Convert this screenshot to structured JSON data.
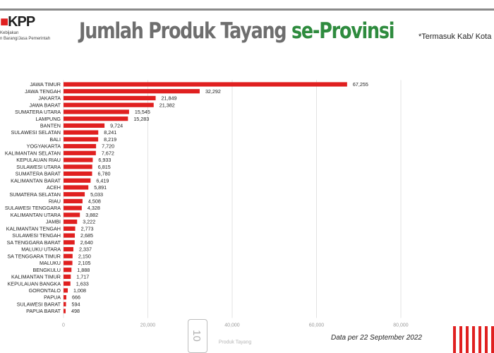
{
  "logo": {
    "mark": "KPP",
    "line1": "Kebijakan",
    "line2": "n Barang/Jasa Pemerintah"
  },
  "header": {
    "title": "Jumlah Produk Tayang",
    "title_accent": "se-Provinsi",
    "note": "*Termasuk Kab/ Kota"
  },
  "footer": {
    "page_number": "10",
    "date_note": "Data per 22 September 2022"
  },
  "colors": {
    "bar": "#e02020",
    "title_gray": "#6e6e6e",
    "title_green": "#2e8b3e"
  },
  "chart_data": {
    "type": "bar",
    "orientation": "horizontal",
    "title": "Jumlah Produk Tayang se-Provinsi",
    "xlabel": "Produk Tayang",
    "ylabel": "",
    "xlim": [
      0,
      80000
    ],
    "x_ticks": [
      "0",
      "20,000",
      "40,000",
      "60,000",
      "80,000"
    ],
    "x_tick_values": [
      0,
      20000,
      40000,
      60000,
      80000
    ],
    "grid": true,
    "categories": [
      "JAWA TIMUR",
      "JAWA TENGAH",
      "JAKARTA",
      "JAWA BARAT",
      "SUMATERA UTARA",
      "LAMPUNG",
      "BANTEN",
      "SULAWESI SELATAN",
      "BALI",
      "YOGYAKARTA",
      "KALIMANTAN SELATAN",
      "KEPULAUAN RIAU",
      "SULAWESI UTARA",
      "SUMATERA BARAT",
      "KALIMANTAN BARAT",
      "ACEH",
      "SUMATERA SELATAN",
      "RIAU",
      "SULAWESI TENGGARA",
      "KALIMANTAN UTARA",
      "JAMBI",
      "KALIMANTAN TENGAH",
      "SULAWESI TENGAH",
      "SA TENGGARA BARAT",
      "MALUKU UTARA",
      "SA TENGGARA TIMUR",
      "MALUKU",
      "BENGKULU",
      "KALIMANTAN TIMUR",
      "KEPULAUAN BANGKA",
      "GORONTALO",
      "PAPUA",
      "SULAWESI BARAT",
      "PAPUA BARAT"
    ],
    "values": [
      67255,
      32292,
      21849,
      21382,
      15545,
      15283,
      9724,
      8241,
      8219,
      7720,
      7672,
      6933,
      6815,
      6780,
      6419,
      5891,
      5033,
      4508,
      4328,
      3882,
      3222,
      2773,
      2685,
      2640,
      2337,
      2150,
      2105,
      1888,
      1717,
      1633,
      1008,
      666,
      594,
      498
    ],
    "value_labels": [
      "67,255",
      "32,292",
      "21,849",
      "21,382",
      "15,545",
      "15,283",
      "9,724",
      "8,241",
      "8,219",
      "7,720",
      "7,672",
      "6,933",
      "6,815",
      "6,780",
      "6,419",
      "5,891",
      "5,033",
      "4,508",
      "4,328",
      "3,882",
      "3,222",
      "2,773",
      "2,685",
      "2,640",
      "2,337",
      "2,150",
      "2,105",
      "1,888",
      "1,717",
      "1,633",
      "1,008",
      "666",
      "594",
      "498"
    ]
  }
}
